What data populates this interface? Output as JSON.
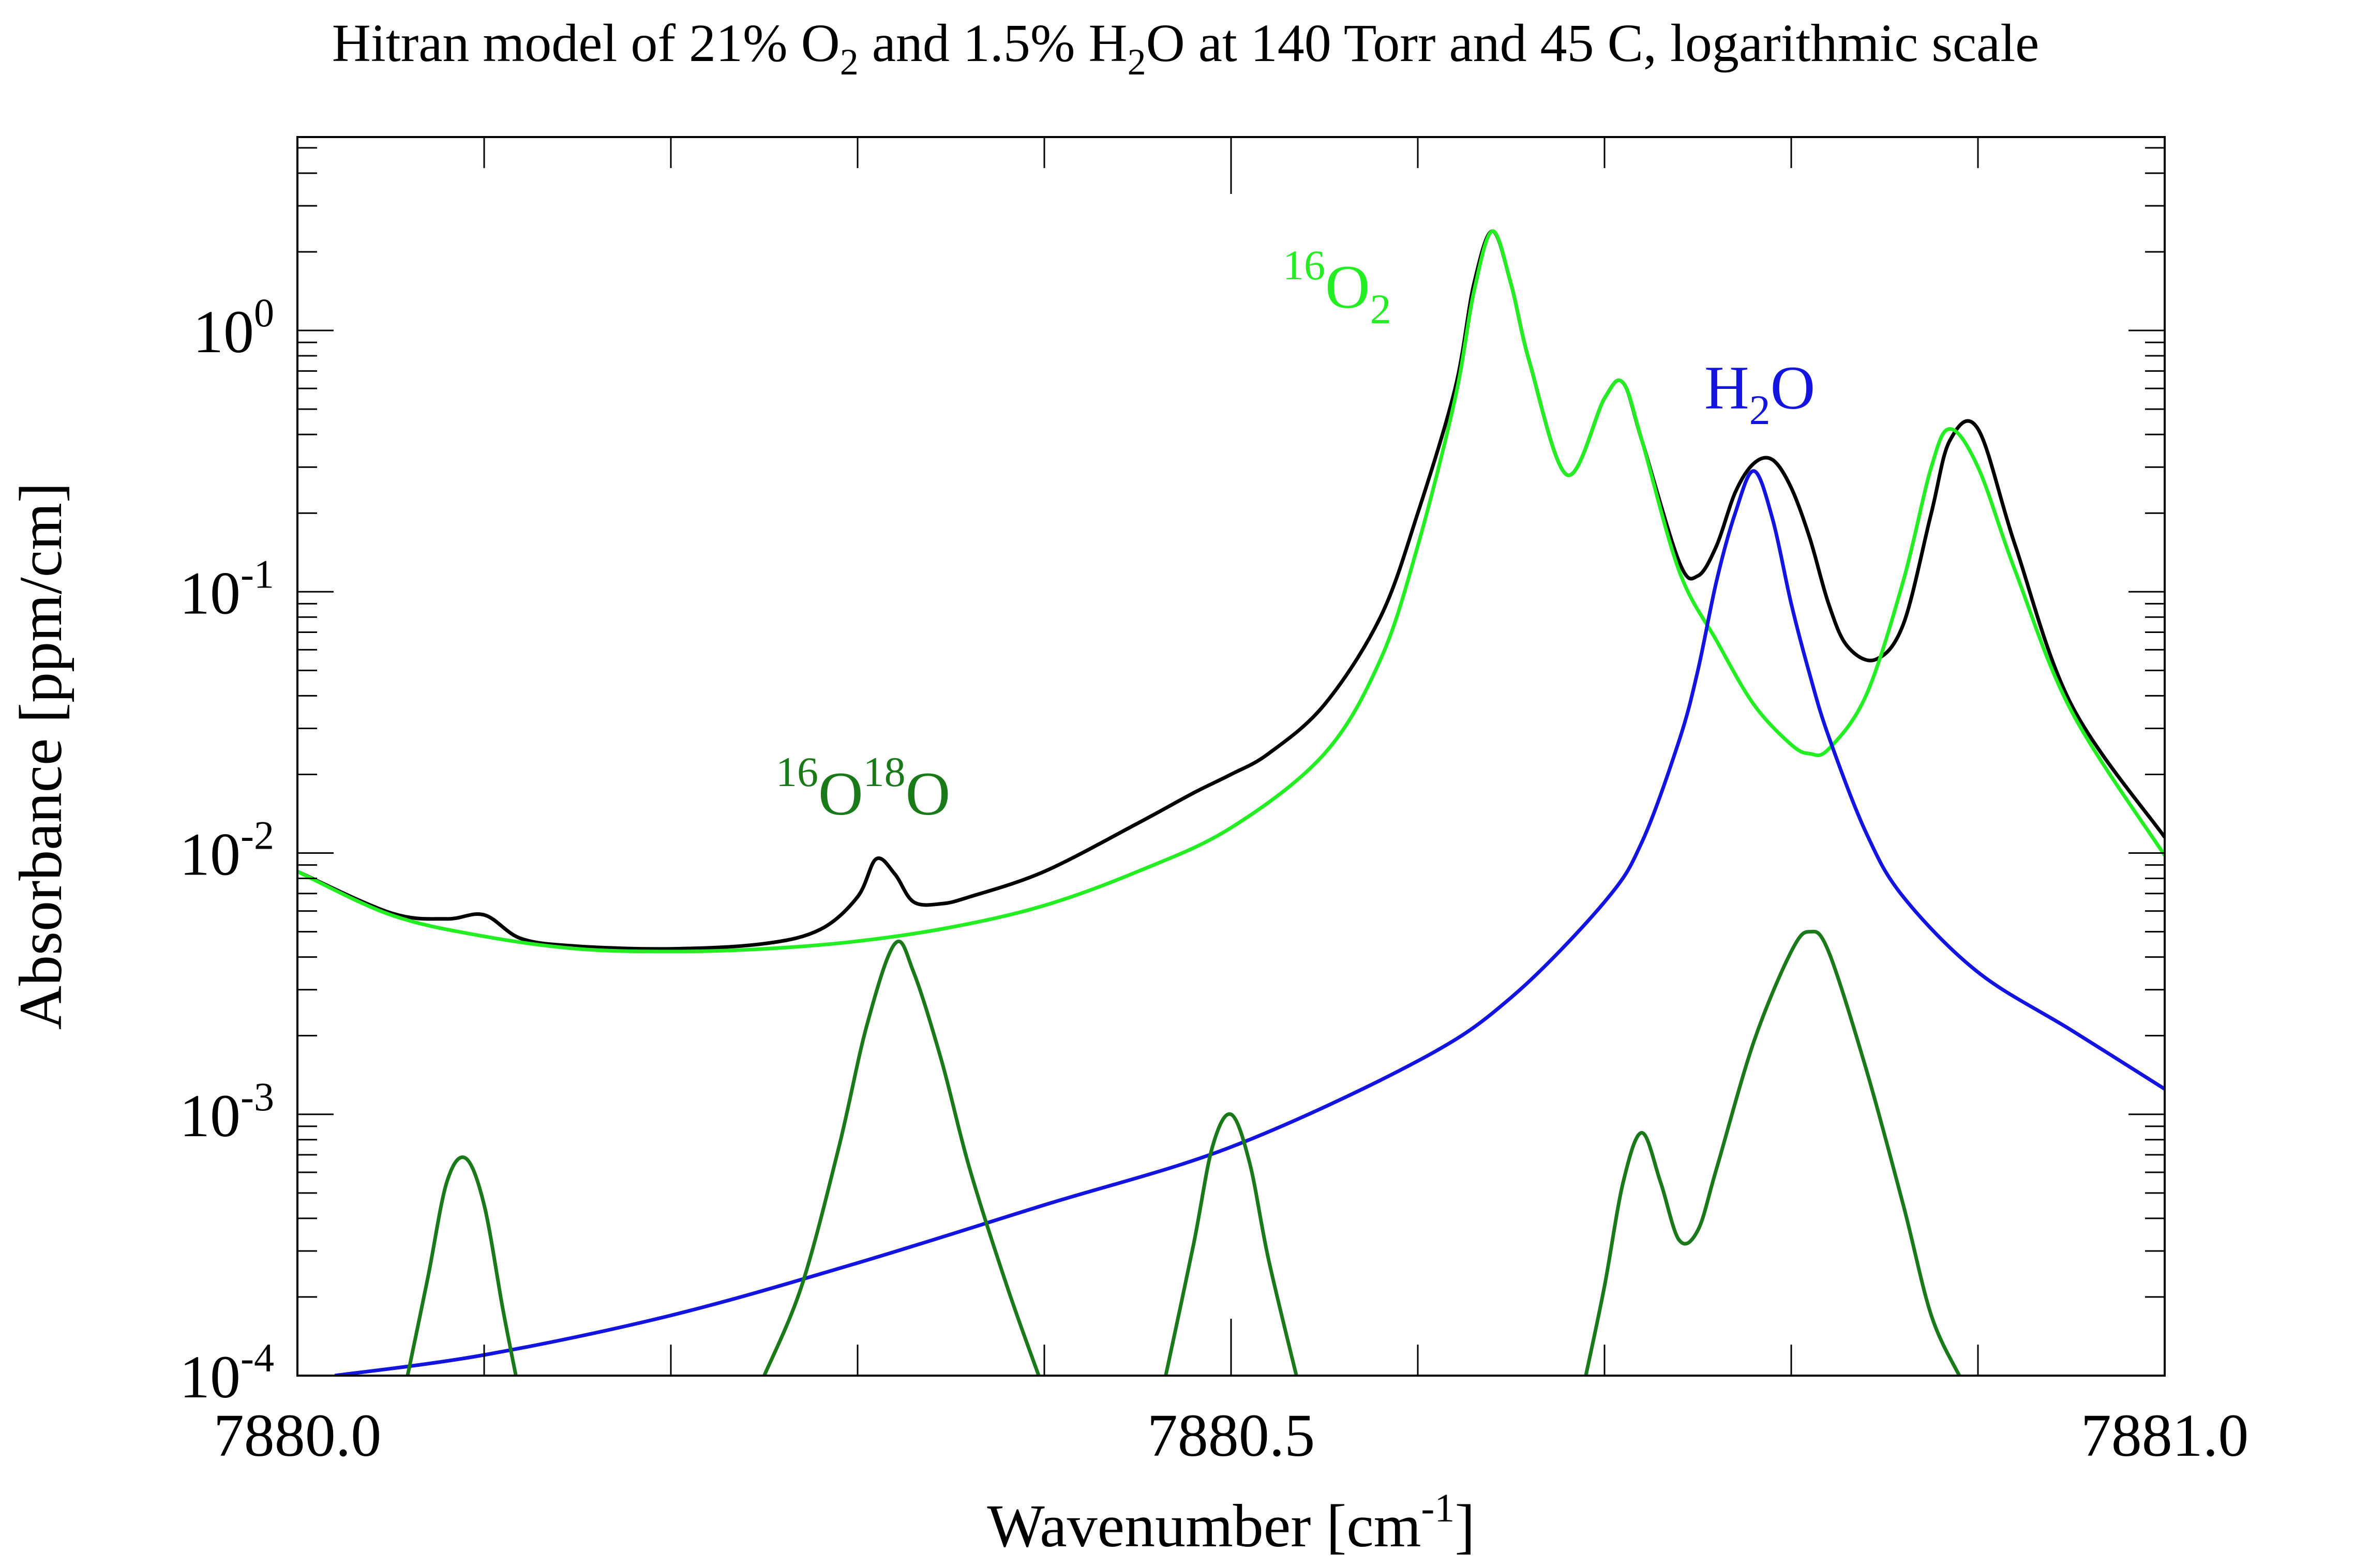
{
  "chart_data": {
    "type": "line",
    "title": {
      "pre": "Hitran model of 21% O",
      "o2_sub": "2",
      "mid": " and 1.5% H",
      "h2o_sub": "2",
      "post": "O at 140 Torr and 45 C, logarithmic scale"
    },
    "xlabel": {
      "pre": "Wavenumber [cm",
      "sup": "-1",
      "post": "]"
    },
    "ylabel": "Absorbance [ppm/cm]",
    "x_ticks": [
      "7880.0",
      "7880.5",
      "7881.0"
    ],
    "y_ticks": [
      {
        "base": "10",
        "exp": "-4",
        "value": 0.0001
      },
      {
        "base": "10",
        "exp": "-3",
        "value": 0.001
      },
      {
        "base": "10",
        "exp": "-2",
        "value": 0.01
      },
      {
        "base": "10",
        "exp": "-1",
        "value": 0.1
      },
      {
        "base": "10",
        "exp": "0",
        "value": 1
      }
    ],
    "xlim": [
      7880.0,
      7881.0
    ],
    "ylim": [
      0.0001,
      5.5
    ],
    "yscale": "log",
    "grid": false,
    "annotations": [
      {
        "key": "o16o18",
        "color": "#1a7a1a",
        "iso1": "16",
        "e1": "O",
        "iso2": "18",
        "e2": "O"
      },
      {
        "key": "o2",
        "color": "#22ee22",
        "iso1": "16",
        "e1": "O",
        "sub": "2"
      },
      {
        "key": "h2o",
        "color": "#1414e0",
        "e1": "H",
        "sub": "2",
        "e2": "O"
      }
    ],
    "series": [
      {
        "color": "#000000",
        "x": [
          7880.0,
          7880.05,
          7880.08,
          7880.1,
          7880.12,
          7880.15,
          7880.2,
          7880.25,
          7880.28,
          7880.3,
          7880.31,
          7880.32,
          7880.33,
          7880.345,
          7880.36,
          7880.4,
          7880.45,
          7880.48,
          7880.5,
          7880.52,
          7880.55,
          7880.58,
          7880.6,
          7880.62,
          7880.63,
          7880.64,
          7880.65,
          7880.66,
          7880.68,
          7880.7,
          7880.71,
          7880.72,
          7880.74,
          7880.75,
          7880.76,
          7880.77,
          7880.78,
          7880.79,
          7880.8,
          7880.81,
          7880.82,
          7880.83,
          7880.845,
          7880.86,
          7880.875,
          7880.885,
          7880.9,
          7880.92,
          7880.95,
          7881.0
        ],
        "y": [
          0.0085,
          0.0059,
          0.0056,
          0.0058,
          0.0047,
          0.0044,
          0.0043,
          0.0045,
          0.0051,
          0.0068,
          0.0095,
          0.0083,
          0.0065,
          0.0064,
          0.0068,
          0.0085,
          0.013,
          0.017,
          0.02,
          0.024,
          0.037,
          0.08,
          0.2,
          0.6,
          1.5,
          2.4,
          1.5,
          0.75,
          0.28,
          0.55,
          0.63,
          0.38,
          0.13,
          0.115,
          0.15,
          0.24,
          0.31,
          0.32,
          0.25,
          0.16,
          0.09,
          0.062,
          0.055,
          0.075,
          0.2,
          0.38,
          0.42,
          0.15,
          0.037,
          0.0115
        ]
      },
      {
        "color": "#22ee22",
        "x": [
          7880.0,
          7880.05,
          7880.1,
          7880.15,
          7880.2,
          7880.25,
          7880.3,
          7880.35,
          7880.4,
          7880.45,
          7880.5,
          7880.55,
          7880.58,
          7880.6,
          7880.62,
          7880.63,
          7880.64,
          7880.65,
          7880.66,
          7880.68,
          7880.7,
          7880.71,
          7880.72,
          7880.74,
          7880.76,
          7880.78,
          7880.8,
          7880.81,
          7880.82,
          7880.84,
          7880.86,
          7880.875,
          7880.885,
          7880.9,
          7880.92,
          7880.95,
          7881.0
        ],
        "y": [
          0.0085,
          0.0058,
          0.0048,
          0.0043,
          0.0042,
          0.0043,
          0.0046,
          0.0052,
          0.0063,
          0.0085,
          0.0125,
          0.024,
          0.055,
          0.15,
          0.55,
          1.4,
          2.4,
          1.5,
          0.75,
          0.28,
          0.55,
          0.63,
          0.38,
          0.12,
          0.065,
          0.037,
          0.026,
          0.024,
          0.025,
          0.04,
          0.11,
          0.3,
          0.42,
          0.3,
          0.12,
          0.035,
          0.0098
        ]
      },
      {
        "color": "#1414e0",
        "x": [
          7880.02,
          7880.1,
          7880.2,
          7880.3,
          7880.4,
          7880.5,
          7880.6,
          7880.65,
          7880.7,
          7880.72,
          7880.74,
          7880.75,
          7880.76,
          7880.77,
          7880.78,
          7880.79,
          7880.8,
          7880.81,
          7880.82,
          7880.84,
          7880.86,
          7880.9,
          7880.95,
          7881.0
        ],
        "y": [
          0.0001,
          0.00012,
          0.00017,
          0.00027,
          0.00045,
          0.00075,
          0.0016,
          0.0028,
          0.0065,
          0.011,
          0.027,
          0.05,
          0.11,
          0.2,
          0.29,
          0.19,
          0.09,
          0.048,
          0.028,
          0.012,
          0.0068,
          0.0035,
          0.0021,
          0.00125
        ]
      },
      {
        "color": "#1a7a1a",
        "x": [
          7880.059,
          7880.07,
          7880.08,
          7880.09,
          7880.1,
          7880.11,
          7880.117
        ],
        "y": [
          0.0001,
          0.00024,
          0.00055,
          0.00068,
          0.00045,
          0.00018,
          0.0001
        ]
      },
      {
        "color": "#1a7a1a",
        "x": [
          7880.25,
          7880.27,
          7880.29,
          7880.305,
          7880.32,
          7880.33,
          7880.345,
          7880.36,
          7880.38,
          7880.397
        ],
        "y": [
          0.0001,
          0.00022,
          0.00075,
          0.0022,
          0.0045,
          0.0035,
          0.0016,
          0.00062,
          0.00022,
          0.0001
        ]
      },
      {
        "color": "#1a7a1a",
        "x": [
          7880.465,
          7880.48,
          7880.49,
          7880.5,
          7880.51,
          7880.52,
          7880.535
        ],
        "y": [
          0.0001,
          0.00032,
          0.00075,
          0.001,
          0.00065,
          0.00028,
          0.0001
        ]
      },
      {
        "color": "#1a7a1a",
        "x": [
          7880.69,
          7880.7,
          7880.71,
          7880.72,
          7880.73,
          7880.74,
          7880.75,
          7880.76,
          7880.78,
          7880.8,
          7880.81,
          7880.82,
          7880.84,
          7880.86,
          7880.875,
          7880.89
        ],
        "y": [
          0.0001,
          0.00022,
          0.00055,
          0.00085,
          0.00055,
          0.00033,
          0.00036,
          0.00062,
          0.0019,
          0.0042,
          0.005,
          0.0042,
          0.0015,
          0.00045,
          0.00017,
          0.0001
        ]
      }
    ]
  }
}
